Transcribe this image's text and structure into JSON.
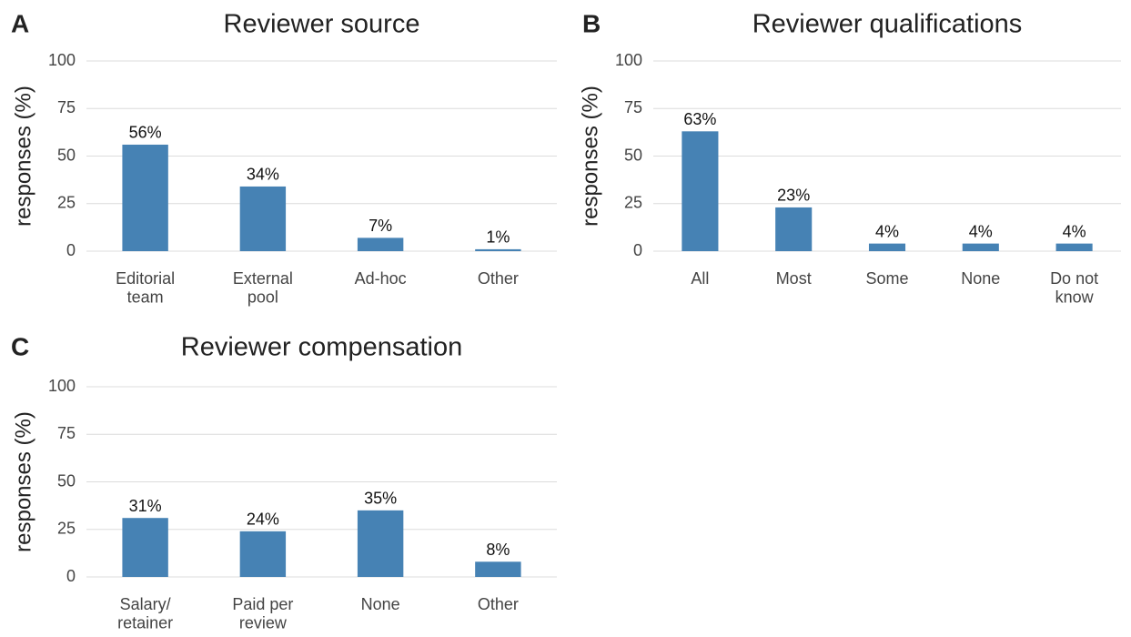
{
  "chart_data": [
    {
      "type": "bar",
      "panel": "A",
      "title": "Reviewer source",
      "ylabel": "responses (%)",
      "categories": [
        "Editorial\nteam",
        "External\npool",
        "Ad-hoc",
        "Other"
      ],
      "values": [
        56,
        34,
        7,
        1
      ],
      "value_labels": [
        "56%",
        "34%",
        "7%",
        "1%"
      ],
      "color": "#4682b4",
      "ylim": [
        0,
        100
      ],
      "yticks": [
        0,
        25,
        50,
        75,
        100
      ],
      "grid": true
    },
    {
      "type": "bar",
      "panel": "B",
      "title": "Reviewer qualifications",
      "ylabel": "responses (%)",
      "categories": [
        "All",
        "Most",
        "Some",
        "None",
        "Do not\nknow"
      ],
      "values": [
        63,
        23,
        4,
        4,
        4
      ],
      "value_labels": [
        "63%",
        "23%",
        "4%",
        "4%",
        "4%"
      ],
      "color": "#4682b4",
      "ylim": [
        0,
        100
      ],
      "yticks": [
        0,
        25,
        50,
        75,
        100
      ],
      "grid": true
    },
    {
      "type": "bar",
      "panel": "C",
      "title": "Reviewer compensation",
      "ylabel": "responses (%)",
      "categories": [
        "Salary/\nretainer",
        "Paid per\nreview",
        "None",
        "Other"
      ],
      "values": [
        31,
        24,
        35,
        8
      ],
      "value_labels": [
        "31%",
        "24%",
        "35%",
        "8%"
      ],
      "color": "#4682b4",
      "ylim": [
        0,
        100
      ],
      "yticks": [
        0,
        25,
        50,
        75,
        100
      ],
      "grid": true
    }
  ]
}
